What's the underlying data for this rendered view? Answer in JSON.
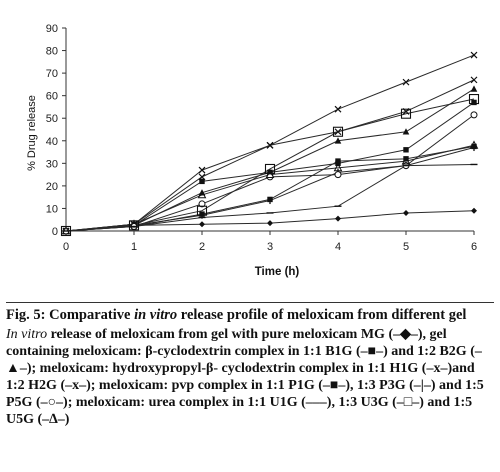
{
  "chart_data": {
    "type": "line",
    "xlabel": "Time (h)",
    "ylabel": "% Drug release",
    "x": [
      0,
      1,
      2,
      3,
      4,
      5,
      6
    ],
    "xlim": [
      0,
      6
    ],
    "ylim": [
      0,
      90
    ],
    "yticks": [
      0,
      10,
      20,
      30,
      40,
      50,
      60,
      70,
      80,
      90
    ],
    "xticks": [
      0,
      1,
      2,
      3,
      4,
      5,
      6
    ],
    "grid": false,
    "series": [
      {
        "name": "MG",
        "marker": "diamond",
        "values": [
          0,
          2.5,
          3,
          3.5,
          5.5,
          8,
          9
        ]
      },
      {
        "name": "B1G",
        "marker": "square-filled",
        "values": [
          0,
          2.5,
          22,
          26,
          30,
          36,
          57
        ]
      },
      {
        "name": "B2G",
        "marker": "triangle-filled",
        "values": [
          0,
          2.5,
          17,
          26,
          40,
          44,
          63
        ]
      },
      {
        "name": "H1G",
        "marker": "x",
        "values": [
          0,
          3,
          27,
          38,
          54,
          66,
          78
        ]
      },
      {
        "name": "H2G",
        "marker": "x",
        "values": [
          0,
          3,
          24,
          38,
          44,
          53,
          67
        ]
      },
      {
        "name": "P1G",
        "marker": "square-filled",
        "values": [
          0,
          2,
          7.5,
          14,
          31,
          32,
          37.5
        ]
      },
      {
        "name": "P3G",
        "marker": "bar",
        "values": [
          0,
          2.5,
          7,
          13.5,
          26,
          29,
          37
        ]
      },
      {
        "name": "P5G",
        "marker": "circle-open",
        "values": [
          0,
          2,
          12,
          24,
          25,
          29,
          51.5
        ]
      },
      {
        "name": "U1G",
        "marker": "dash",
        "values": [
          0,
          2,
          6,
          8,
          11,
          29,
          29.5
        ]
      },
      {
        "name": "U3G",
        "marker": "square-open",
        "values": [
          0,
          2.5,
          9,
          27.5,
          44,
          52,
          58.5
        ]
      },
      {
        "name": "U5G",
        "marker": "triangle-open",
        "values": [
          0,
          3,
          16,
          25,
          28,
          31,
          38
        ]
      }
    ]
  },
  "caption": {
    "figure_label": "Fig. 5:",
    "title_pre": "Comparative",
    "title_italic": "in vitro",
    "title_post": "release profile of meloxicam from different gel",
    "body_italic": "In vitro",
    "body_text": "release of meloxicam from gel with pure meloxicam MG (–◆–), gel containing meloxicam: β-cyclodextrin complex in 1:1 B1G (–■–) and 1:2 B2G (–▲–); meloxicam: hydroxypropyl-β- cyclodextrin complex in 1:1 H1G (–x–)and 1:2 H2G (–x–); meloxicam: pvp complex in 1:1 P1G (–■–), 1:3 P3G (–|–) and 1:5 P5G (–○–); meloxicam: urea complex in 1:1 U1G (–––), 1:3 U3G (–□–) and 1:5 U5G (–∆–)"
  }
}
